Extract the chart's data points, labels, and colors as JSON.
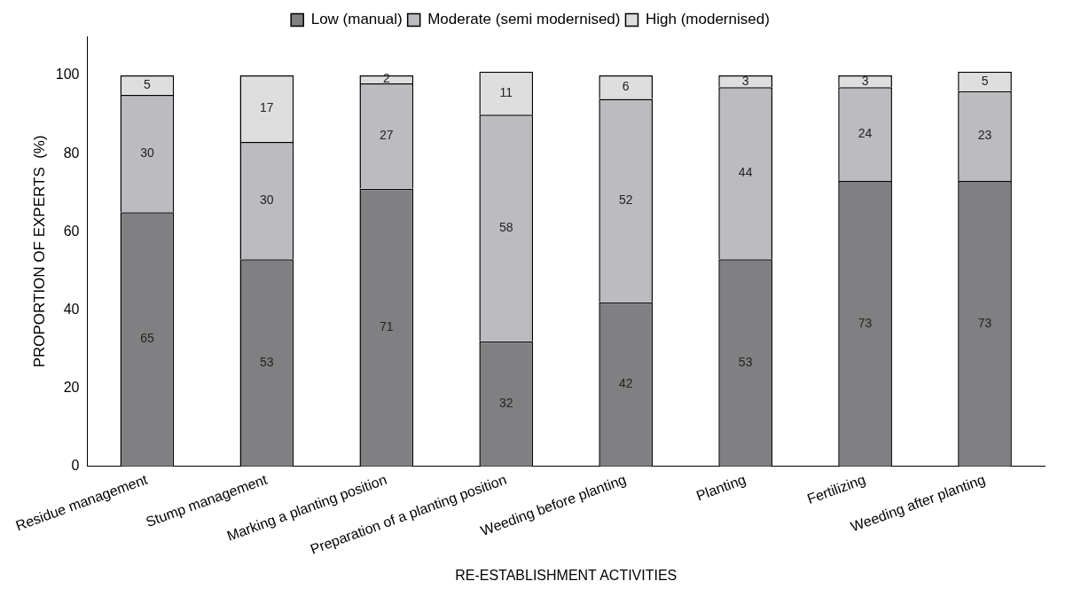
{
  "chart_data": {
    "type": "bar",
    "stacked": true,
    "xlabel": "RE-ESTABLISHMENT ACTIVITIES",
    "ylabel": "PROPORTION OF EXPERTS  (%)",
    "categories": [
      "Residue management",
      "Stump management",
      "Marking a planting position",
      "Preparation of a planting position",
      "Weeding before planting",
      "Planting",
      "Fertilizing",
      "Weeding after planting"
    ],
    "series": [
      {
        "name": "Low (manual)",
        "color": "#808083",
        "values": [
          65,
          53,
          71,
          32,
          42,
          53,
          73,
          73
        ]
      },
      {
        "name": "Moderate (semi modernised)",
        "color": "#bcbcc0",
        "values": [
          30,
          30,
          27,
          58,
          52,
          44,
          24,
          23
        ]
      },
      {
        "name": "High (modernised)",
        "color": "#dedede",
        "values": [
          5,
          17,
          2,
          11,
          6,
          3,
          3,
          5
        ]
      }
    ],
    "ylim": [
      0,
      110
    ],
    "yticks": [
      0,
      20,
      40,
      60,
      80,
      100
    ],
    "grid": false,
    "legend": "top",
    "data_labels": true
  }
}
